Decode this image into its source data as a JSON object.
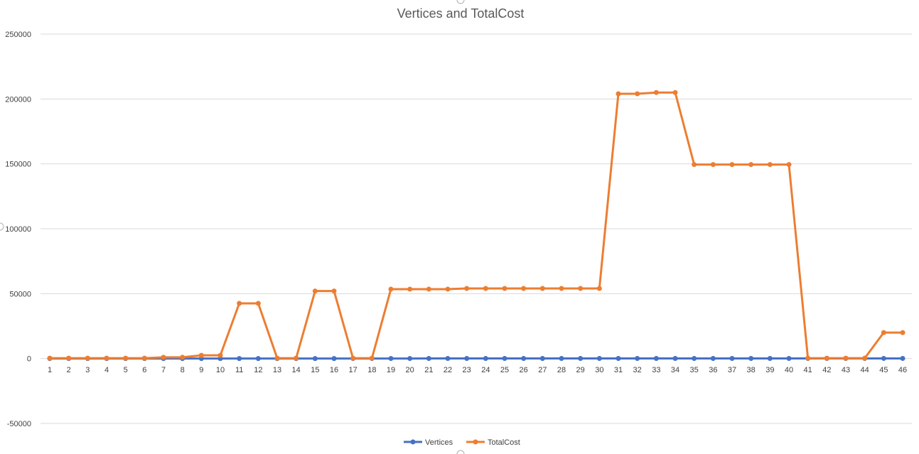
{
  "chart_data": {
    "type": "line",
    "title": "Vertices and TotalCost",
    "xlabel": "",
    "ylabel": "",
    "ylim": [
      -50000,
      250000
    ],
    "yticks": [
      -50000,
      0,
      50000,
      100000,
      150000,
      200000,
      250000
    ],
    "grid": true,
    "legend_position": "bottom",
    "categories": [
      "1",
      "2",
      "3",
      "4",
      "5",
      "6",
      "7",
      "8",
      "9",
      "10",
      "11",
      "12",
      "13",
      "14",
      "15",
      "16",
      "17",
      "18",
      "19",
      "20",
      "21",
      "22",
      "23",
      "24",
      "25",
      "26",
      "27",
      "28",
      "29",
      "30",
      "31",
      "32",
      "33",
      "34",
      "35",
      "36",
      "37",
      "38",
      "39",
      "40",
      "41",
      "42",
      "43",
      "44",
      "45",
      "46"
    ],
    "series": [
      {
        "name": "Vertices",
        "color": "#4472c4",
        "values": [
          10,
          10,
          10,
          10,
          10,
          20,
          20,
          20,
          20,
          30,
          30,
          30,
          40,
          40,
          40,
          40,
          50,
          50,
          50,
          50,
          60,
          60,
          60,
          60,
          70,
          70,
          70,
          70,
          80,
          80,
          80,
          80,
          90,
          90,
          90,
          90,
          100,
          100,
          100,
          100,
          110,
          110,
          110,
          110,
          120,
          120
        ]
      },
      {
        "name": "TotalCost",
        "color": "#ed7d31",
        "values": [
          300,
          300,
          300,
          300,
          300,
          300,
          1000,
          1000,
          2500,
          2500,
          42500,
          42500,
          300,
          300,
          52000,
          52000,
          300,
          300,
          53500,
          53500,
          53500,
          53500,
          54000,
          54000,
          54000,
          54000,
          54000,
          54000,
          54000,
          54000,
          204000,
          204000,
          205000,
          205000,
          149500,
          149500,
          149500,
          149500,
          149500,
          149500,
          300,
          300,
          300,
          300,
          20000,
          20000
        ]
      }
    ]
  }
}
